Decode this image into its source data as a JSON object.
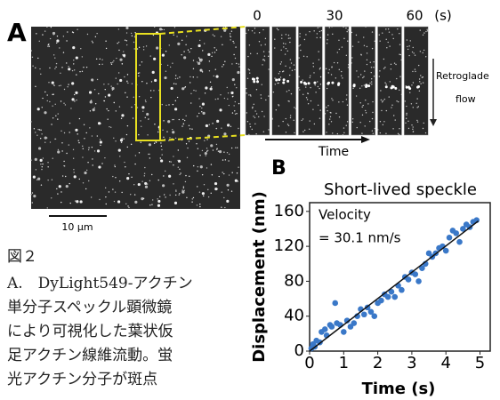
{
  "panel_a": {
    "label": "A",
    "time_labels": [
      "0",
      "30",
      "60",
      "(s)"
    ],
    "flow_label": [
      "Retroglade",
      "flow"
    ],
    "time_axis": "Time",
    "scale_bar": "10 μm"
  },
  "caption": {
    "figure": "図２",
    "lines": [
      "A.　DyLight549-アクチン",
      "単分子スペックル顕微鏡",
      "により可視化した葉状仮",
      "足アクチン線維流動。蛍",
      "光アクチン分子が斑点"
    ]
  },
  "chart_data": {
    "type": "scatter",
    "panel_label": "B",
    "title": "Short-lived speckle",
    "xlabel": "Time (s)",
    "ylabel": "Displacement (nm)",
    "annotation": [
      "Velocity",
      "= 30.1 nm/s"
    ],
    "color": "#3a78c8",
    "x": [
      0.05,
      0.1,
      0.15,
      0.2,
      0.3,
      0.35,
      0.45,
      0.5,
      0.6,
      0.65,
      0.75,
      0.8,
      0.9,
      1.0,
      1.1,
      1.2,
      1.3,
      1.4,
      1.5,
      1.6,
      1.7,
      1.8,
      1.9,
      2.0,
      2.1,
      2.2,
      2.3,
      2.4,
      2.5,
      2.6,
      2.7,
      2.8,
      2.9,
      3.0,
      3.1,
      3.2,
      3.3,
      3.4,
      3.5,
      3.6,
      3.7,
      3.8,
      3.9,
      4.0,
      4.1,
      4.2,
      4.3,
      4.4,
      4.5,
      4.6,
      4.7,
      4.8,
      4.9
    ],
    "values": [
      3,
      8,
      5,
      12,
      10,
      22,
      25,
      18,
      30,
      28,
      55,
      32,
      30,
      22,
      35,
      28,
      32,
      40,
      48,
      42,
      50,
      45,
      40,
      55,
      58,
      65,
      62,
      68,
      62,
      75,
      70,
      85,
      82,
      90,
      88,
      80,
      95,
      100,
      112,
      108,
      112,
      118,
      120,
      115,
      130,
      138,
      135,
      125,
      140,
      145,
      142,
      148,
      150
    ],
    "fit": {
      "x": [
        0,
        4.95
      ],
      "values": [
        0,
        149
      ]
    },
    "xlim": [
      0,
      5.3
    ],
    "ylim": [
      0,
      170
    ],
    "xticks": [
      0,
      1,
      2,
      3,
      4,
      5
    ],
    "yticks": [
      0,
      40,
      80,
      120,
      160
    ]
  }
}
